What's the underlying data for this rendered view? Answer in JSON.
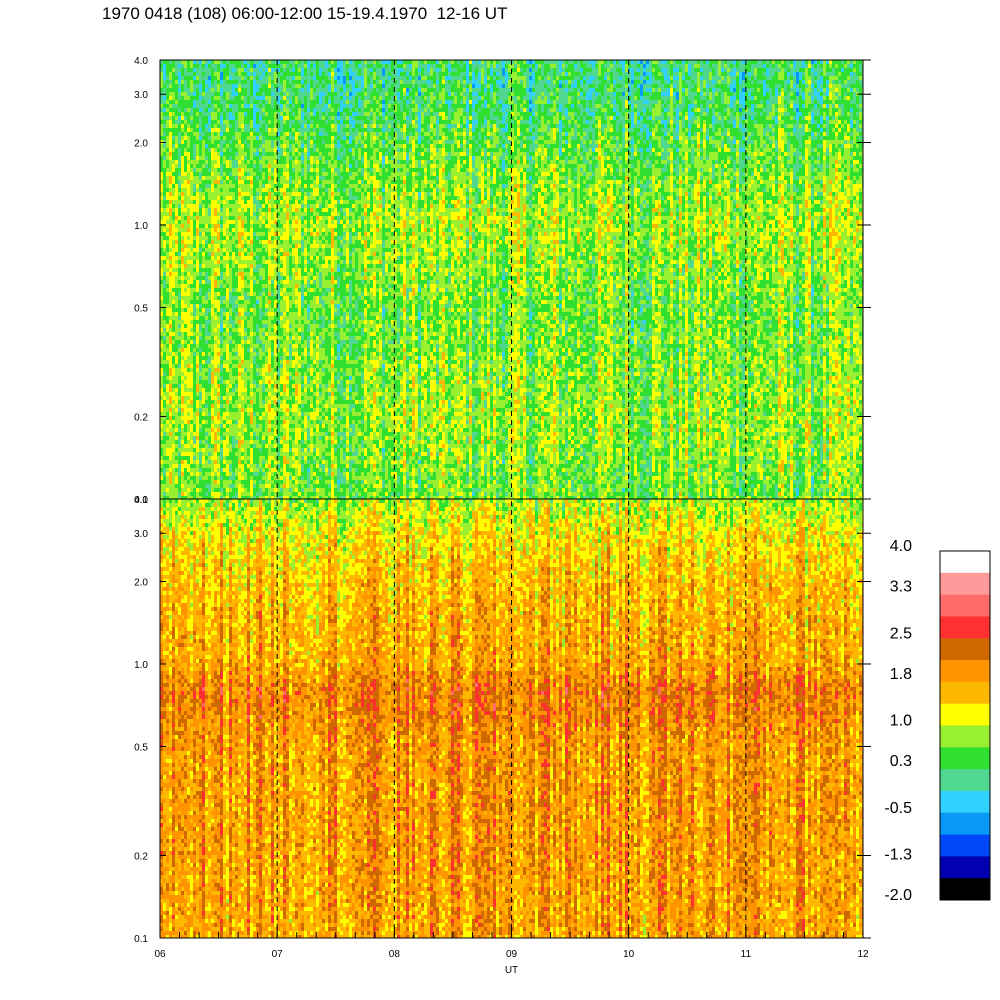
{
  "title": "1970 0418 (108) 06:00-12:00 15-19.4.1970  12-16 UT",
  "chart_data": [
    {
      "type": "heatmap",
      "panel": "upper",
      "x_range": [
        "06",
        "12"
      ],
      "y_scale": "log",
      "ylim": [
        0.1,
        4.0
      ],
      "y_ticks": [
        "0.1",
        "0.2",
        "0.5",
        "1.0",
        "2.0",
        "3.0",
        "4.0"
      ],
      "y_tick_values": [
        0.1,
        0.2,
        0.5,
        1.0,
        2.0,
        3.0,
        4.0
      ],
      "value_profile": [
        {
          "y": 0.1,
          "value": 0.6
        },
        {
          "y": 0.2,
          "value": 0.8
        },
        {
          "y": 0.5,
          "value": 0.6
        },
        {
          "y": 1.0,
          "value": 0.9
        },
        {
          "y": 2.0,
          "value": 0.5
        },
        {
          "y": 3.0,
          "value": 0.2
        },
        {
          "y": 4.0,
          "value": 0.2
        }
      ]
    },
    {
      "type": "heatmap",
      "panel": "lower",
      "x_range": [
        "06",
        "12"
      ],
      "y_scale": "log",
      "ylim": [
        0.1,
        4.0
      ],
      "y_ticks": [
        "0.1",
        "0.2",
        "0.5",
        "1.0",
        "2.0",
        "3.0",
        "4.0"
      ],
      "y_tick_values": [
        0.1,
        0.2,
        0.5,
        1.0,
        2.0,
        3.0,
        4.0
      ],
      "value_profile": [
        {
          "y": 0.1,
          "value": 1.8
        },
        {
          "y": 0.2,
          "value": 1.9
        },
        {
          "y": 0.5,
          "value": 1.9
        },
        {
          "y": 0.8,
          "value": 2.2
        },
        {
          "y": 1.0,
          "value": 1.8
        },
        {
          "y": 2.0,
          "value": 1.6
        },
        {
          "y": 3.0,
          "value": 1.3
        },
        {
          "y": 4.0,
          "value": 0.9
        }
      ]
    }
  ],
  "x_axis": {
    "label": "UT",
    "ticks": [
      "06",
      "07",
      "08",
      "09",
      "10",
      "11",
      "12"
    ],
    "hour_values": [
      6,
      7,
      8,
      9,
      10,
      11,
      12
    ],
    "dashed_hours": [
      7,
      8,
      9,
      10,
      11
    ]
  },
  "colorbar": {
    "labels": [
      "4.0",
      "3.3",
      "2.5",
      "1.8",
      "1.0",
      "0.3",
      "-0.5",
      "-1.3",
      "-2.0"
    ],
    "min": -2.0,
    "max": 4.0,
    "colors": [
      "#ffffff",
      "#ff9a9a",
      "#ff6a6a",
      "#ff3030",
      "#d06800",
      "#ff9400",
      "#ffb800",
      "#ffff00",
      "#98f030",
      "#30e030",
      "#50d890",
      "#30d0ff",
      "#0898f8",
      "#0048f8",
      "#0000b0",
      "#000000"
    ]
  }
}
